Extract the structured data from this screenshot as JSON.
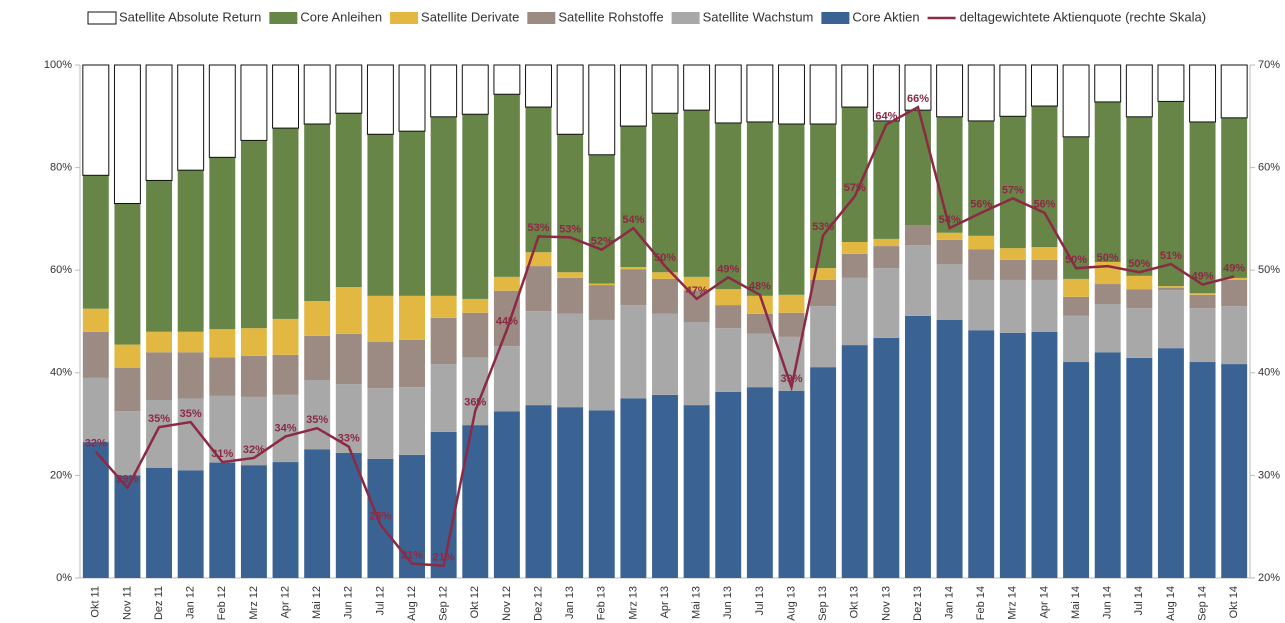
{
  "chart_data": {
    "type": "bar",
    "stacked": true,
    "categories": [
      "Okt 11",
      "Nov 11",
      "Dez 11",
      "Jan 12",
      "Feb 12",
      "Mrz 12",
      "Apr 12",
      "Mai 12",
      "Jun 12",
      "Jul 12",
      "Aug 12",
      "Sep 12",
      "Okt 12",
      "Nov 12",
      "Dez 12",
      "Jan 13",
      "Feb 13",
      "Mrz 13",
      "Apr 13",
      "Mai 13",
      "Jun 13",
      "Jul 13",
      "Aug 13",
      "Sep 13",
      "Okt 13",
      "Nov 13",
      "Dez 13",
      "Jan 14",
      "Feb 14",
      "Mrz 14",
      "Apr 14",
      "Mai 14",
      "Jun 14",
      "Jul 14",
      "Aug 14",
      "Sep 14",
      "Okt 14"
    ],
    "series": [
      {
        "name": "Satellite Absolute Return",
        "color": "#ffffff",
        "values": [
          21.5,
          27,
          22.5,
          20.5,
          18,
          14.7,
          12.3,
          11.5,
          9.4,
          13.5,
          12.9,
          10.1,
          9.6,
          5.7,
          8.2,
          13.5,
          17.5,
          11.9,
          9.4,
          8.8,
          11.3,
          11.1,
          11.5,
          11.5,
          8.2,
          10.9,
          8.8,
          10.1,
          10.9,
          10,
          8,
          14,
          7.2,
          10.1,
          7.1,
          11.1,
          10.3
        ]
      },
      {
        "name": "Core Anleihen",
        "color": "#668547",
        "values": [
          26,
          27.5,
          29.5,
          31.5,
          33.5,
          36.6,
          37.2,
          34.5,
          33.9,
          31.5,
          32.1,
          34.9,
          36,
          35.6,
          28.3,
          26.9,
          25.1,
          27.5,
          31,
          32.5,
          32.4,
          33.9,
          33.3,
          28.1,
          26.3,
          23,
          22.4,
          22.6,
          22.4,
          25.7,
          27.5,
          27.7,
          31.2,
          31,
          36,
          33.4,
          31.2
        ]
      },
      {
        "name": "Satellite Derivate",
        "color": "#e3b842",
        "values": [
          4.5,
          4.5,
          4,
          4,
          5.5,
          5.4,
          7,
          6.8,
          9.1,
          9,
          8.6,
          4.3,
          2.7,
          2.7,
          2.7,
          1.1,
          0.3,
          0.4,
          1.3,
          2.6,
          3.1,
          3.5,
          3.5,
          2.3,
          2.3,
          1.4,
          0,
          1.4,
          2.6,
          2.3,
          2.5,
          3.5,
          4.3,
          2.6,
          0.3,
          0.3,
          0.4
        ]
      },
      {
        "name": "Satellite Rohstoffe",
        "color": "#9b8b82",
        "values": [
          9,
          8.5,
          9.3,
          9,
          7.5,
          8,
          7.8,
          8.6,
          9.8,
          9,
          9.2,
          9,
          8.7,
          10.8,
          8.8,
          7,
          6.8,
          7,
          6.8,
          6.2,
          4.5,
          3.9,
          4.7,
          5.1,
          4.7,
          4.3,
          3.9,
          4.7,
          6,
          3.9,
          3.9,
          3.7,
          3.9,
          3.7,
          0.5,
          2.6,
          5.1
        ]
      },
      {
        "name": "Satellite Wachstum",
        "color": "#a8a8a8",
        "values": [
          12.5,
          12.5,
          13.2,
          14,
          13,
          13.3,
          13.1,
          13.5,
          13.4,
          13.8,
          13.2,
          13.2,
          13.2,
          12.7,
          18.3,
          18.2,
          17.6,
          18.2,
          15.8,
          16.2,
          12.4,
          10.4,
          10.5,
          11.9,
          13.1,
          13.6,
          13.8,
          10.9,
          9.8,
          10.3,
          10.1,
          9,
          9.4,
          9.7,
          11.3,
          10.5,
          11.3
        ]
      },
      {
        "name": "Core Aktien",
        "color": "#3a6394",
        "values": [
          26.5,
          20,
          21.5,
          21,
          22.5,
          22,
          22.6,
          25.1,
          24.4,
          23.2,
          24,
          28.5,
          29.8,
          32.5,
          33.7,
          33.3,
          32.7,
          35,
          35.7,
          33.7,
          36.3,
          37.2,
          36.5,
          41.1,
          45.4,
          46.8,
          51.1,
          50.3,
          48.3,
          47.8,
          48,
          42.1,
          44,
          42.9,
          44.8,
          42.1,
          41.7
        ]
      },
      {
        "name": "deltagewichtete Aktienquote (rechte Skala)",
        "color": "#8c2a45",
        "type": "line",
        "axis": "y2",
        "values": [
          32.3,
          28.8,
          34.7,
          35.2,
          31.3,
          31.7,
          33.8,
          34.6,
          32.8,
          25.2,
          21.4,
          21.2,
          36.3,
          44.2,
          53.3,
          53.2,
          52,
          54.1,
          50.4,
          47.2,
          49.3,
          47.6,
          38.6,
          53.4,
          57.2,
          64.2,
          65.9,
          54.1,
          55.6,
          57,
          55.6,
          50.2,
          50.4,
          49.8,
          50.6,
          48.6,
          49.4
        ],
        "value_labels": [
          "32%",
          "29%",
          "35%",
          "35%",
          "31%",
          "32%",
          "34%",
          "35%",
          "33%",
          "25%",
          "21%",
          "21%",
          "36%",
          "44%",
          "53%",
          "53%",
          "52%",
          "54%",
          "50%",
          "47%",
          "49%",
          "48%",
          "39%",
          "53%",
          "57%",
          "64%",
          "66%",
          "54%",
          "56%",
          "57%",
          "56%",
          "50%",
          "50%",
          "50%",
          "51%",
          "49%",
          "49%"
        ]
      }
    ],
    "ylim": [
      0,
      100
    ],
    "yticks": [
      {
        "value": 0,
        "label": "0%"
      },
      {
        "value": 20,
        "label": "20%"
      },
      {
        "value": 40,
        "label": "40%"
      },
      {
        "value": 60,
        "label": "60%"
      },
      {
        "value": 80,
        "label": "80%"
      },
      {
        "value": 100,
        "label": "100%"
      }
    ],
    "y2lim": [
      20,
      70
    ],
    "y2ticks": [
      {
        "value": 20,
        "label": "20%"
      },
      {
        "value": 30,
        "label": "30%"
      },
      {
        "value": 40,
        "label": "40%"
      },
      {
        "value": 50,
        "label": "50%"
      },
      {
        "value": 60,
        "label": "60%"
      },
      {
        "value": 70,
        "label": "70%"
      }
    ],
    "legend": "top"
  }
}
